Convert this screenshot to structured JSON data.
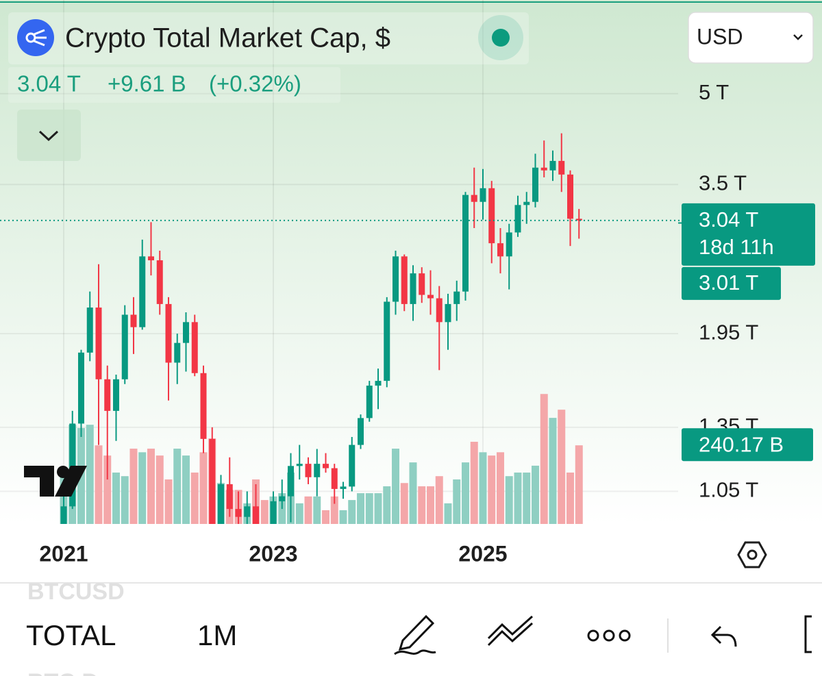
{
  "chart_data": {
    "type": "candlestick",
    "title": "Crypto Total Market Cap, $",
    "currency": "USD",
    "header_price": "3.04 T",
    "header_change": "+9.61 B",
    "header_change_pct": "(+0.32%)",
    "categories": [
      "2021",
      null,
      null,
      null,
      null,
      null,
      null,
      null,
      null,
      null,
      null,
      null,
      null,
      null,
      null,
      null,
      null,
      null,
      null,
      null,
      null,
      null,
      null,
      null,
      "2023",
      null,
      null,
      null,
      null,
      null,
      null,
      null,
      null,
      null,
      null,
      null,
      null,
      null,
      null,
      null,
      null,
      null,
      null,
      null,
      null,
      null,
      null,
      null,
      "2025",
      null,
      null,
      null,
      null,
      null,
      null,
      null,
      null,
      null,
      null,
      null
    ],
    "open": [
      0.77,
      0.99,
      1.37,
      1.81,
      2.16,
      1.63,
      1.44,
      1.63,
      2.1,
      2.0,
      2.64,
      2.6,
      2.19,
      1.74,
      1.88,
      2.04,
      1.67,
      1.29,
      0.88,
      1.08,
      0.98,
      0.95,
      0.99,
      0.8,
      0.77,
      1.01,
      1.03,
      1.16,
      1.17,
      1.11,
      1.17,
      1.15,
      1.06,
      1.07,
      1.26,
      1.4,
      1.59,
      1.62,
      2.21,
      2.64,
      2.19,
      2.47,
      2.27,
      2.24,
      2.04,
      2.19,
      2.3,
      3.36,
      3.27,
      3.45,
      2.78,
      2.64,
      2.9,
      3.23,
      3.27,
      3.74,
      3.7,
      3.84,
      3.64,
      3.06
    ],
    "high": [
      1.1,
      1.44,
      1.83,
      2.3,
      2.56,
      1.72,
      1.66,
      2.18,
      2.25,
      2.82,
      3.02,
      2.7,
      2.25,
      1.95,
      2.12,
      2.1,
      1.72,
      1.35,
      1.12,
      1.2,
      1.05,
      1.05,
      1.08,
      0.86,
      1.05,
      1.1,
      1.22,
      1.26,
      1.2,
      1.24,
      1.22,
      1.17,
      1.09,
      1.3,
      1.42,
      1.62,
      1.7,
      2.25,
      2.7,
      2.66,
      2.55,
      2.53,
      2.5,
      2.35,
      2.28,
      2.4,
      3.4,
      3.74,
      3.72,
      3.55,
      2.95,
      3.0,
      3.35,
      3.4,
      3.95,
      4.16,
      4.0,
      4.28,
      3.7,
      3.18
    ],
    "low": [
      0.72,
      0.98,
      1.3,
      1.75,
      1.26,
      1.1,
      1.28,
      1.6,
      1.8,
      1.98,
      2.45,
      2.1,
      1.5,
      1.6,
      1.68,
      1.65,
      1.22,
      0.8,
      0.85,
      0.95,
      0.9,
      0.9,
      0.78,
      0.76,
      0.77,
      0.98,
      0.93,
      1.1,
      1.08,
      1.03,
      1.13,
      1.0,
      1.02,
      1.05,
      1.24,
      1.38,
      1.45,
      1.58,
      2.1,
      2.13,
      2.05,
      2.2,
      2.1,
      1.69,
      1.83,
      2.05,
      2.22,
      2.95,
      3.05,
      2.57,
      2.47,
      2.32,
      2.85,
      3.0,
      3.2,
      3.6,
      3.55,
      3.4,
      2.75,
      2.83
    ],
    "close": [
      0.99,
      1.37,
      1.81,
      2.16,
      1.63,
      1.44,
      1.63,
      2.1,
      2.0,
      2.64,
      2.6,
      2.19,
      1.74,
      1.88,
      2.04,
      1.67,
      1.29,
      0.88,
      1.08,
      0.98,
      0.95,
      0.99,
      0.8,
      0.77,
      1.01,
      1.03,
      1.16,
      1.17,
      1.11,
      1.17,
      1.15,
      1.06,
      1.07,
      1.26,
      1.4,
      1.59,
      1.62,
      2.21,
      2.64,
      2.19,
      2.47,
      2.27,
      2.24,
      2.04,
      2.19,
      2.3,
      3.36,
      3.27,
      3.45,
      2.78,
      2.64,
      2.9,
      3.23,
      3.27,
      3.74,
      3.7,
      3.84,
      3.64,
      3.06,
      3.04
    ],
    "volume": [
      157,
      303,
      293,
      303,
      240,
      209,
      157,
      146,
      230,
      219,
      230,
      209,
      136,
      230,
      209,
      157,
      219,
      261,
      125,
      104,
      104,
      63,
      136,
      73,
      84,
      94,
      157,
      63,
      84,
      84,
      42,
      84,
      42,
      73,
      94,
      94,
      94,
      115,
      230,
      125,
      188,
      115,
      115,
      146,
      63,
      136,
      188,
      251,
      219,
      209,
      219,
      146,
      157,
      157,
      178,
      397,
      324,
      349,
      157,
      240.17
    ],
    "volume_last": {
      "value": 240.17,
      "label": "240.17 B"
    },
    "last_price": {
      "value": 3.04,
      "label": "3.04 T"
    },
    "countdown": "18d 11h",
    "second_price": {
      "value": 3.01,
      "label": "3.01 T"
    },
    "ylim": [
      0.924,
      7.22
    ],
    "yticks": [
      {
        "value": 5,
        "label": "5 T"
      },
      {
        "value": 3.5,
        "label": "3.5 T"
      },
      {
        "value": 1.95,
        "label": "1.95 T"
      },
      {
        "value": 1.35,
        "label": "1.35 T"
      },
      {
        "value": 1.05,
        "label": "1.05 T"
      }
    ],
    "log_scale": true,
    "grid": true,
    "up_color": "#089981",
    "down_color": "#f23645",
    "volume_up_color": "#8fcfc2",
    "volume_down_color": "#f4a7a9"
  },
  "toolbar": {
    "symbol": "TOTAL",
    "interval": "1M",
    "ghost_above": "BTCUSD",
    "ghost_below": "BTC.D"
  }
}
